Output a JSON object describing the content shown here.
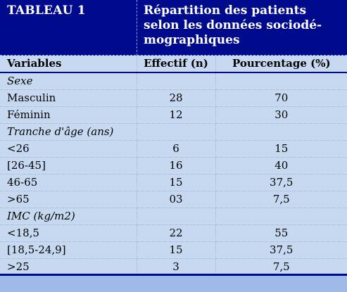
{
  "header": {
    "tag": "TABLEAU 1",
    "title": "Répartition des patients selon les données sociodé-mographiques"
  },
  "table": {
    "columns": [
      "Variables",
      "Effectif (n)",
      "Pourcentage (%)"
    ],
    "sections": [
      {
        "label": "Sexe",
        "rows": [
          {
            "label": "Masculin",
            "n": "28",
            "pct": "70"
          },
          {
            "label": "Féminin",
            "n": "12",
            "pct": "30"
          }
        ]
      },
      {
        "label": "Tranche d'âge (ans)",
        "rows": [
          {
            "label": "<26",
            "n": "6",
            "pct": "15"
          },
          {
            "label": "[26-45]",
            "n": "16",
            "pct": "40"
          },
          {
            "label": "46-65",
            "n": "15",
            "pct": "37,5"
          },
          {
            "label": ">65",
            "n": "03",
            "pct": "7,5"
          }
        ]
      },
      {
        "label": "IMC (kg/m2)",
        "rows": [
          {
            "label": "<18,5",
            "n": "22",
            "pct": "55"
          },
          {
            "label": "[18,5-24,9]",
            "n": "15",
            "pct": "37,5"
          },
          {
            "label": ">25",
            "n": "3",
            "pct": "7,5"
          }
        ]
      }
    ]
  }
}
